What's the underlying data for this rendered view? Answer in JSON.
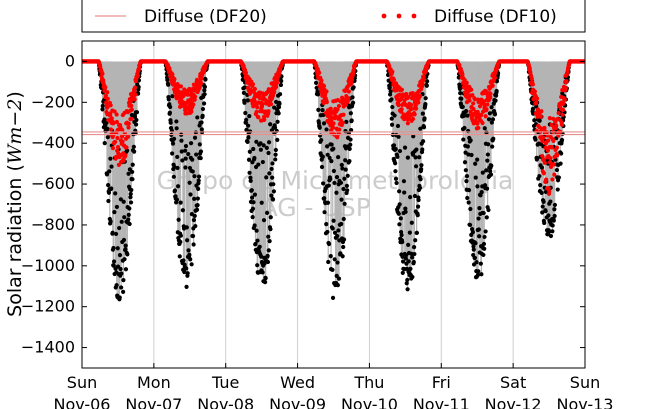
{
  "chart_data": {
    "type": "scatter",
    "ylabel": "Solar radiation (",
    "ylabel_unit": "Wm−2",
    "ylabel_close": ")",
    "ylim": [
      -1500,
      100
    ],
    "yticks": [
      0,
      -200,
      -400,
      -600,
      -800,
      -1000,
      -1200,
      -1400
    ],
    "ytick_labels": [
      "0",
      "−200",
      "−400",
      "−600",
      "−800",
      "−1000",
      "−1200",
      "−1400"
    ],
    "xlim": [
      0,
      7
    ],
    "x_ticks": [
      {
        "x": 0,
        "day": "Sun",
        "date": "Nov-06"
      },
      {
        "x": 1,
        "day": "Mon",
        "date": "Nov-07"
      },
      {
        "x": 2,
        "day": "Tue",
        "date": "Nov-08"
      },
      {
        "x": 3,
        "day": "Wed",
        "date": "Nov-09"
      },
      {
        "x": 4,
        "day": "Thu",
        "date": "Nov-10"
      },
      {
        "x": 5,
        "day": "Fri",
        "date": "Nov-11"
      },
      {
        "x": 6,
        "day": "Sat",
        "date": "Nov-12"
      },
      {
        "x": 7,
        "day": "Sun",
        "date": "Nov-13"
      }
    ],
    "grid": true,
    "legend_placement": "top",
    "legend": [
      {
        "label": "Diffuse (DF20)",
        "style": "line",
        "color": "#e89090"
      },
      {
        "label": "Diffuse (DF10)",
        "style": "dots",
        "color": "#ff0000"
      }
    ],
    "reference_lines": [
      -345,
      -358
    ],
    "days": [
      {
        "global_peak": -1180,
        "diffuse_peak": -520,
        "shift": 0.02
      },
      {
        "global_peak": -1130,
        "diffuse_peak": -270,
        "shift": -0.05
      },
      {
        "global_peak": -1120,
        "diffuse_peak": -300,
        "shift": 0.0
      },
      {
        "global_peak": -1180,
        "diffuse_peak": -380,
        "shift": 0.02
      },
      {
        "global_peak": -1140,
        "diffuse_peak": -310,
        "shift": 0.03
      },
      {
        "global_peak": -1080,
        "diffuse_peak": -330,
        "shift": 0.01
      },
      {
        "global_peak": -880,
        "diffuse_peak": -650,
        "shift": -0.01
      }
    ],
    "series_colors": {
      "global": "#000000",
      "diffuse": "#ff0000",
      "envelope": "#b4b4b4"
    }
  },
  "watermark": {
    "line1": "Grupo de Micrometeorologia",
    "line2": "IAG - USP"
  }
}
